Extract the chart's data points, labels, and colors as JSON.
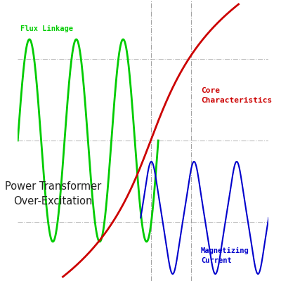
{
  "flux_label": "Flux Linkage",
  "core_label": "Core\nCharacteristics",
  "imag_label": "Magnetizing\nCurrent",
  "text_annotation": "Power Transformer\nOver-Excitation",
  "background_color": "#ffffff",
  "flux_color": "#00cc00",
  "core_color": "#cc0000",
  "imag_color": "#0000cc",
  "vline_color": "#999999",
  "hline_color": "#bbbbbb",
  "figsize": [
    4.0,
    4.0
  ],
  "dpi": 100
}
